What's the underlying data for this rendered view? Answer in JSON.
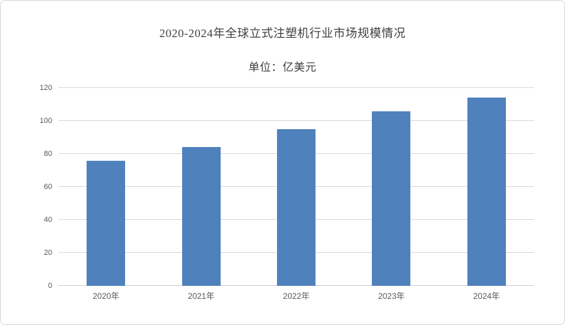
{
  "page": {
    "background_color": "#ffffff",
    "border_color": "#d6d6d6"
  },
  "chart_data": {
    "type": "bar",
    "title": "2020-2024年全球立式注塑机行业市场规模情况",
    "subtitle": "单位：亿美元",
    "categories": [
      "2020年",
      "2021年",
      "2022年",
      "2023年",
      "2024年"
    ],
    "values": [
      76,
      84,
      95,
      106,
      114
    ],
    "xlabel": "",
    "ylabel": "",
    "ylim": [
      0,
      120
    ],
    "yticks": [
      0,
      20,
      40,
      60,
      80,
      100,
      120
    ],
    "grid": true,
    "legend_position": "none",
    "bar_color": "#4F81BD",
    "gridline_color": "#d9d9d9",
    "axis_label_color": "#595959",
    "title_color": "#404040"
  }
}
